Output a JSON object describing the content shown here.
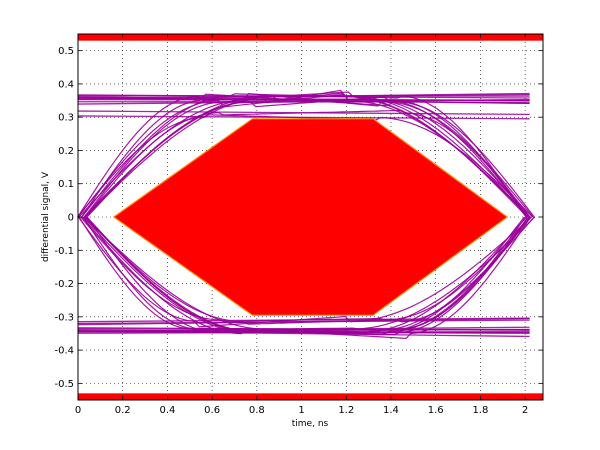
{
  "chart_data": {
    "type": "line",
    "title": "",
    "xlabel": "time, ns",
    "ylabel": "differential signal, V",
    "xlim": [
      0,
      2.08
    ],
    "ylim": [
      -0.55,
      0.55
    ],
    "x_ticks": [
      0,
      0.2,
      0.4,
      0.6,
      0.8,
      1,
      1.2,
      1.4,
      1.6,
      1.8,
      2
    ],
    "x_tick_labels": [
      "0",
      "0.2",
      "0.4",
      "0.6",
      "0.8",
      "1",
      "1.2",
      "1.4",
      "1.6",
      "1.8",
      "2"
    ],
    "y_ticks": [
      -0.5,
      -0.4,
      -0.3,
      -0.2,
      -0.1,
      0,
      0.1,
      0.2,
      0.3,
      0.4,
      0.5
    ],
    "y_tick_labels": [
      "-0.5",
      "-0.4",
      "-0.3",
      "-0.2",
      "-0.1",
      "0",
      "0.1",
      "0.2",
      "0.3",
      "0.4",
      "0.5"
    ],
    "grid": true,
    "colors": {
      "eye_traces": "#990099",
      "mask": "#ff0000",
      "mask_edge": "#ff8800"
    },
    "eye_mask": {
      "points": [
        [
          0.16,
          0
        ],
        [
          0.78,
          0.295
        ],
        [
          1.32,
          0.295
        ],
        [
          1.92,
          0
        ],
        [
          1.32,
          -0.295
        ],
        [
          0.78,
          -0.295
        ]
      ]
    },
    "limit_bands": [
      {
        "y_from": 0.53,
        "y_to": 0.55
      },
      {
        "y_from": -0.55,
        "y_to": -0.53
      }
    ],
    "eye_traces": {
      "high_levels": [
        0.305,
        0.355
      ],
      "low_levels": [
        -0.305,
        -0.345
      ],
      "crossing_times": [
        0.02,
        2.02
      ],
      "crossing_level": 0,
      "traces": 24
    }
  }
}
